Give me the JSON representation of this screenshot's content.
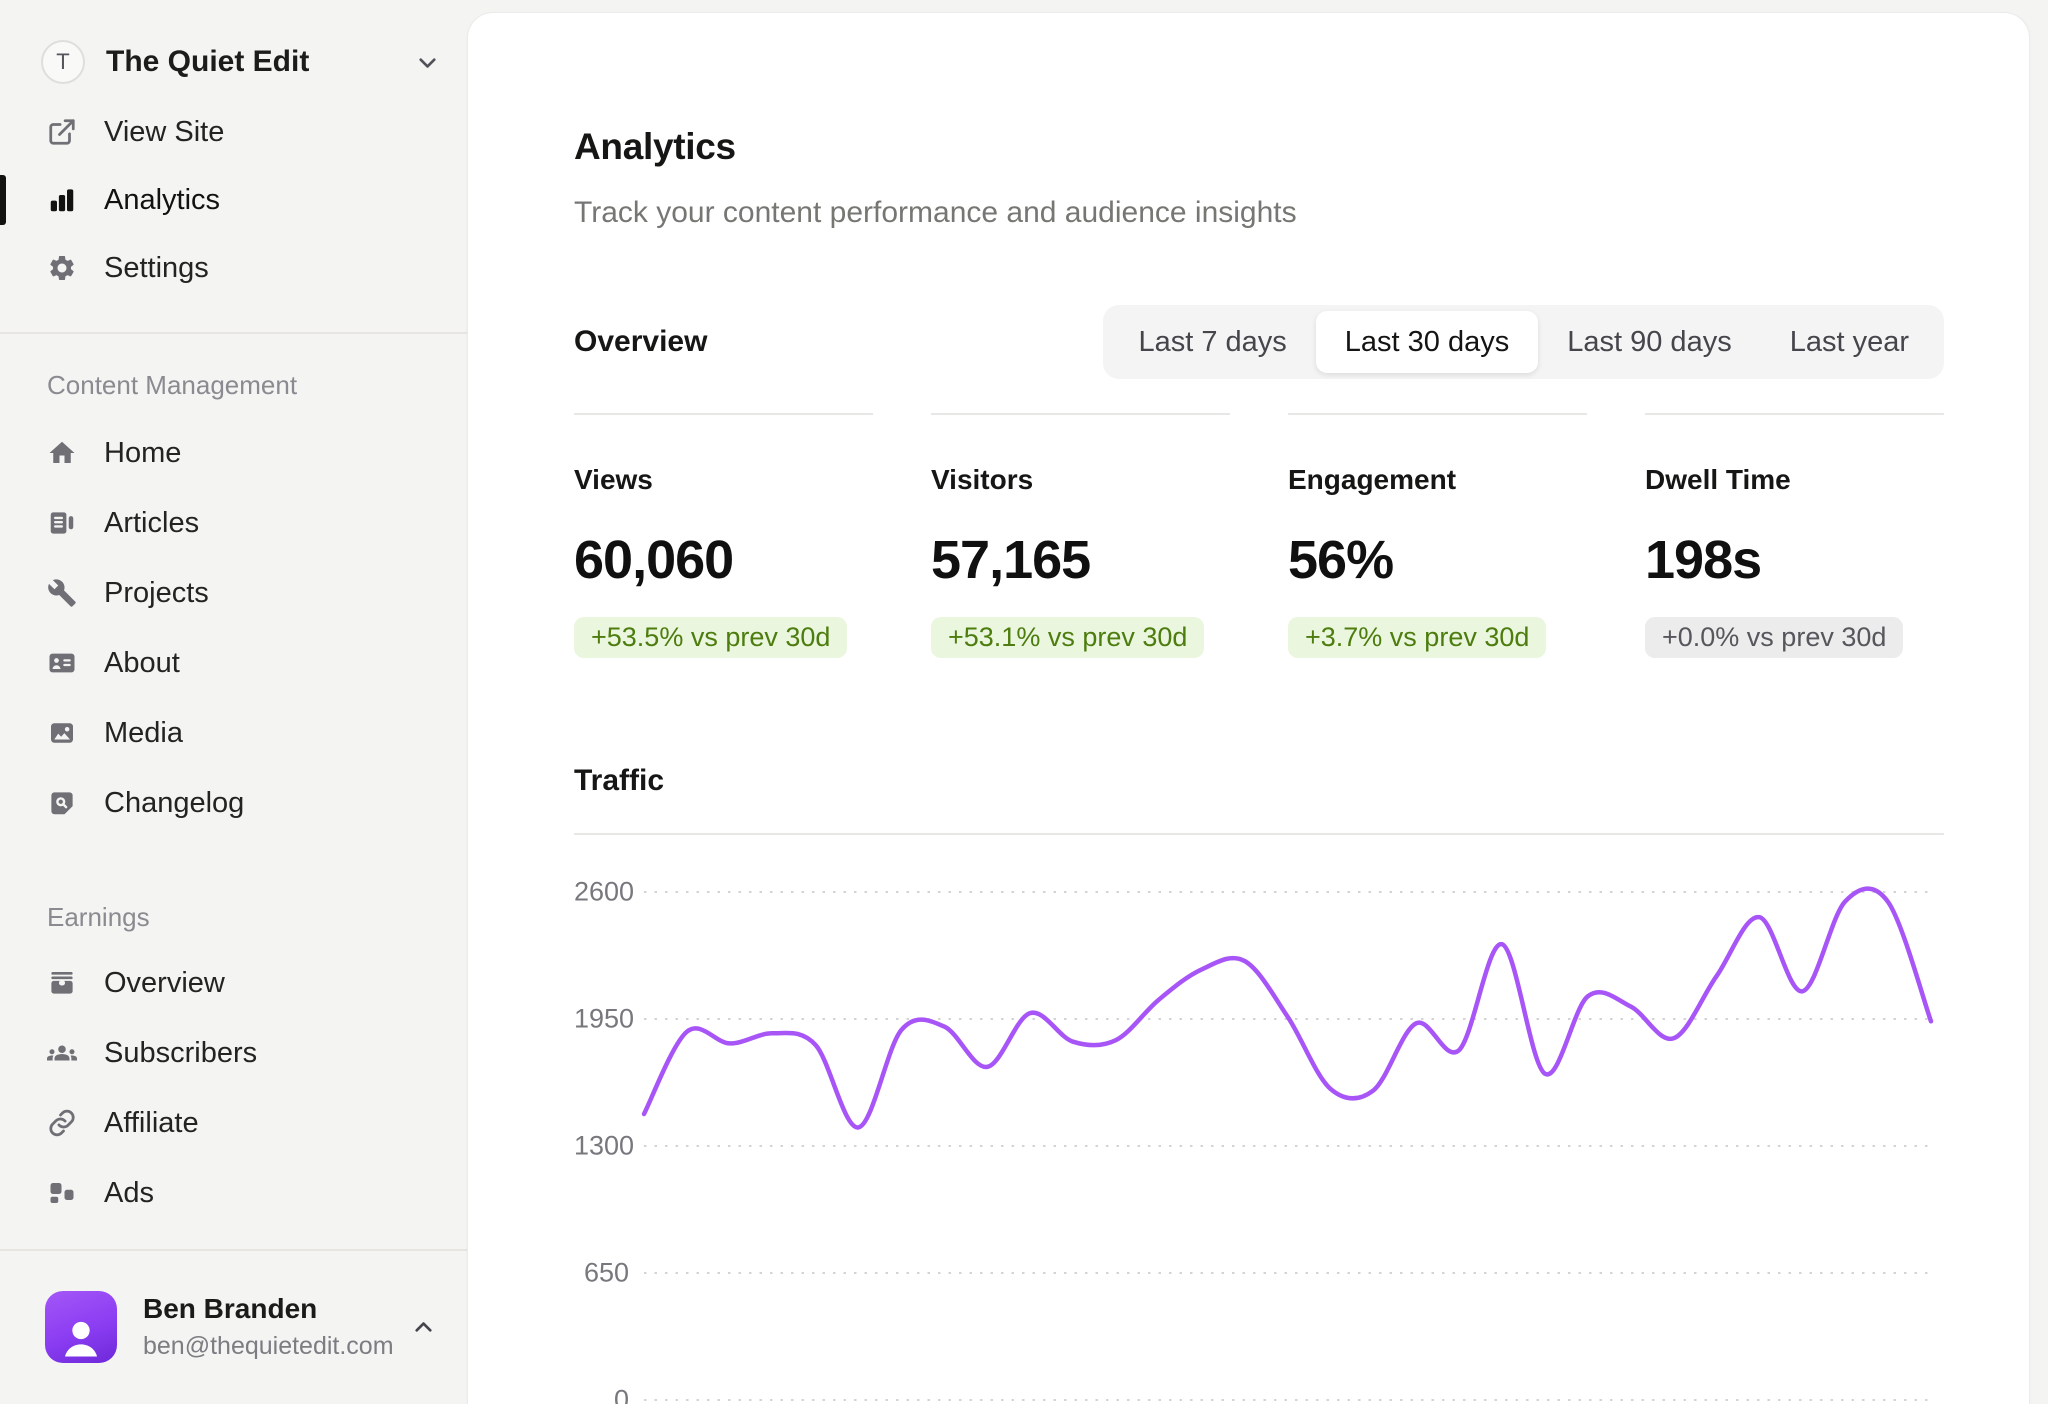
{
  "sidebar": {
    "workspace": {
      "avatar_initial": "T",
      "name": "The Quiet Edit"
    },
    "primary_items": [
      {
        "label": "View Site",
        "icon": "external-link",
        "active": false
      },
      {
        "label": "Analytics",
        "icon": "bar-chart",
        "active": true
      },
      {
        "label": "Settings",
        "icon": "gear",
        "active": false
      }
    ],
    "sections": [
      {
        "title": "Content Management",
        "items": [
          {
            "label": "Home",
            "icon": "home"
          },
          {
            "label": "Articles",
            "icon": "articles"
          },
          {
            "label": "Projects",
            "icon": "wrench"
          },
          {
            "label": "About",
            "icon": "id-card"
          },
          {
            "label": "Media",
            "icon": "image"
          },
          {
            "label": "Changelog",
            "icon": "file-search"
          }
        ]
      },
      {
        "title": "Earnings",
        "items": [
          {
            "label": "Overview",
            "icon": "wallet"
          },
          {
            "label": "Subscribers",
            "icon": "users"
          },
          {
            "label": "Affiliate",
            "icon": "link"
          },
          {
            "label": "Ads",
            "icon": "ad-blocks"
          }
        ]
      }
    ],
    "user": {
      "name": "Ben Branden",
      "email": "ben@thequietedit.com"
    }
  },
  "main": {
    "title": "Analytics",
    "subtitle": "Track your content performance and audience insights",
    "overview": {
      "heading": "Overview",
      "ranges": [
        "Last 7 days",
        "Last 30 days",
        "Last 90 days",
        "Last year"
      ],
      "selected_range": "Last 30 days",
      "stats": [
        {
          "label": "Views",
          "value": "60,060",
          "delta": "+53.5% vs prev 30d",
          "tone": "positive"
        },
        {
          "label": "Visitors",
          "value": "57,165",
          "delta": "+53.1% vs prev 30d",
          "tone": "positive"
        },
        {
          "label": "Engagement",
          "value": "56%",
          "delta": "+3.7% vs prev 30d",
          "tone": "positive"
        },
        {
          "label": "Dwell Time",
          "value": "198s",
          "delta": "+0.0% vs prev 30d",
          "tone": "neutral"
        }
      ]
    },
    "traffic_heading": "Traffic"
  },
  "chart_data": {
    "type": "line",
    "title": "Traffic",
    "x_description": "Daily traffic, last 30 days, no x-axis tick labels shown",
    "y_ticks": [
      2600,
      1950,
      1300,
      650,
      0
    ],
    "ylim": [
      0,
      2600
    ],
    "grid": "dashed-horizontal",
    "legend": "none",
    "line_color": "#a855f7",
    "series": [
      {
        "name": "Traffic",
        "values": [
          1464,
          1885,
          1825,
          1877,
          1817,
          1395,
          1894,
          1911,
          1705,
          1980,
          1834,
          1842,
          2049,
          2204,
          2247,
          1963,
          1593,
          1584,
          1928,
          1791,
          2333,
          1670,
          2066,
          2014,
          1851,
          2169,
          2471,
          2092,
          2552,
          2549,
          1938
        ]
      }
    ]
  },
  "colors": {
    "accent_line": "#a855f7",
    "positive_badge_bg": "#eaf6dd",
    "positive_badge_text": "#4d7c0f",
    "neutral_badge_bg": "#ececec",
    "neutral_badge_text": "#56565c",
    "sidebar_bg": "#f4f4f3",
    "card_bg": "#ffffff",
    "active_indicator": "#121210",
    "gridline": "#d4d4d6",
    "avatar_gradient_start": "#a457f7",
    "avatar_gradient_end": "#6d28d9"
  }
}
